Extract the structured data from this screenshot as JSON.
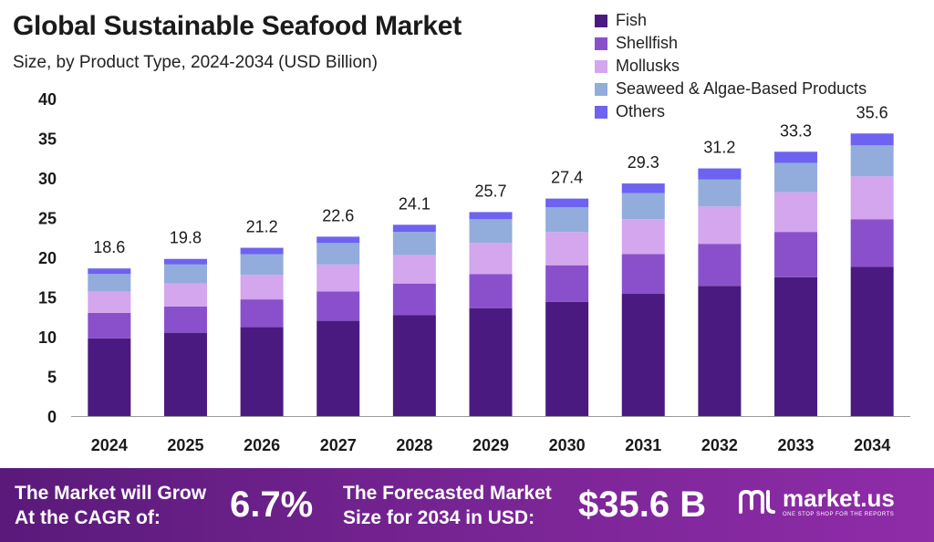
{
  "header": {
    "title": "Global Sustainable Seafood Market",
    "subtitle": "Size, by Product Type, 2024-2034 (USD Billion)"
  },
  "colors": {
    "Fish": "#4b1a80",
    "Shellfish": "#8a50cc",
    "Mollusks": "#d3a6ee",
    "Seaweed & Algae-Based Products": "#92acdc",
    "Others": "#6e62f0"
  },
  "chart_data": {
    "type": "bar",
    "stacked": true,
    "categories": [
      "2024",
      "2025",
      "2026",
      "2027",
      "2028",
      "2029",
      "2030",
      "2031",
      "2032",
      "2033",
      "2034"
    ],
    "series": [
      {
        "name": "Fish",
        "values": [
          9.8,
          10.5,
          11.2,
          12.0,
          12.7,
          13.6,
          14.4,
          15.4,
          16.4,
          17.5,
          18.8
        ]
      },
      {
        "name": "Shellfish",
        "values": [
          3.2,
          3.3,
          3.5,
          3.7,
          4.0,
          4.3,
          4.6,
          5.0,
          5.3,
          5.7,
          6.0
        ]
      },
      {
        "name": "Mollusks",
        "values": [
          2.7,
          2.9,
          3.1,
          3.4,
          3.6,
          3.9,
          4.2,
          4.4,
          4.7,
          5.0,
          5.4
        ]
      },
      {
        "name": "Seaweed & Algae-Based Products",
        "values": [
          2.2,
          2.4,
          2.6,
          2.7,
          2.9,
          3.0,
          3.1,
          3.3,
          3.4,
          3.7,
          3.9
        ]
      },
      {
        "name": "Others",
        "values": [
          0.7,
          0.7,
          0.8,
          0.8,
          0.9,
          0.9,
          1.1,
          1.2,
          1.4,
          1.4,
          1.5
        ]
      }
    ],
    "totals": [
      "18.6",
      "19.8",
      "21.2",
      "22.6",
      "24.1",
      "25.7",
      "27.4",
      "29.3",
      "31.2",
      "33.3",
      "35.6"
    ],
    "y_ticks": [
      "0",
      "5",
      "10",
      "15",
      "20",
      "25",
      "30",
      "35",
      "40"
    ],
    "ylim": [
      0,
      40
    ],
    "grid": false,
    "legend_position": "top-right"
  },
  "footer": {
    "cagr_line1": "The Market will Grow",
    "cagr_line2": "At the CAGR of:",
    "cagr_value": "6.7%",
    "forecast_line1": "The Forecasted Market",
    "forecast_line2": "Size for 2034 in USD:",
    "forecast_value": "$35.6 B",
    "brand_name": "market.us",
    "brand_tagline": "ONE STOP SHOP FOR THE REPORTS"
  }
}
